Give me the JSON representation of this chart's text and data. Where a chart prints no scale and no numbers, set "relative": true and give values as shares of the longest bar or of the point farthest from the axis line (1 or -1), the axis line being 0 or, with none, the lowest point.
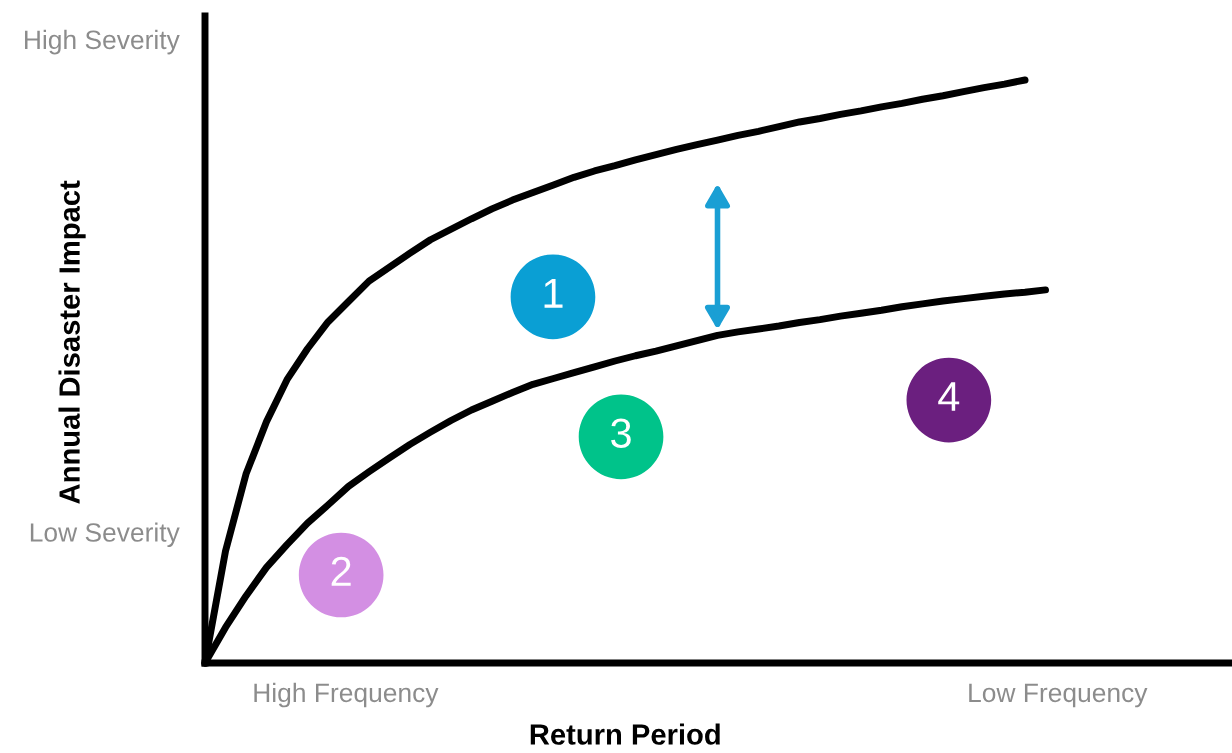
{
  "chart_data": {
    "type": "line",
    "relative": true,
    "xlabel": "Return Period",
    "ylabel": "Annual Disaster Impact",
    "categories": [
      null,
      null,
      null,
      null,
      null,
      null,
      null,
      null,
      null,
      null,
      null,
      null,
      null,
      null,
      null,
      null,
      null,
      null,
      null,
      null,
      null,
      null,
      null,
      null,
      null,
      null,
      null,
      null,
      null,
      null,
      null,
      null,
      null,
      null,
      null,
      null,
      null,
      null,
      null,
      null,
      null,
      null
    ],
    "series": [
      {
        "color": "#000000",
        "values": [
          0,
          0.192,
          0.324,
          0.414,
          0.486,
          0.539,
          0.585,
          0.62,
          0.655,
          0.679,
          0.703,
          0.726,
          0.744,
          0.762,
          0.779,
          0.794,
          0.807,
          0.82,
          0.833,
          0.844,
          0.853,
          0.863,
          0.872,
          0.881,
          0.889,
          0.897,
          0.905,
          0.912,
          0.92,
          0.928,
          0.934,
          0.941,
          0.947,
          0.954,
          0.96,
          0.967,
          0.973,
          0.98,
          0.987,
          0.993,
          1,
          null
        ]
      },
      {
        "color": "#000000",
        "values": [
          0,
          0.061,
          0.115,
          0.164,
          0.203,
          0.24,
          0.271,
          0.303,
          0.328,
          0.352,
          0.375,
          0.396,
          0.416,
          0.434,
          0.449,
          0.464,
          0.478,
          0.488,
          0.498,
          0.508,
          0.518,
          0.527,
          0.535,
          0.544,
          0.553,
          0.562,
          0.568,
          0.573,
          0.578,
          0.584,
          0.589,
          0.595,
          0.6,
          0.605,
          0.611,
          0.616,
          0.621,
          0.625,
          0.629,
          0.633,
          0.636,
          0.64
        ]
      }
    ],
    "annotations": [
      "High Severity",
      "Low Severity",
      "High Frequency",
      "Low Frequency",
      "1",
      "2",
      "3",
      "4"
    ],
    "grid": false,
    "marker": "none",
    "line_style": "solid"
  }
}
